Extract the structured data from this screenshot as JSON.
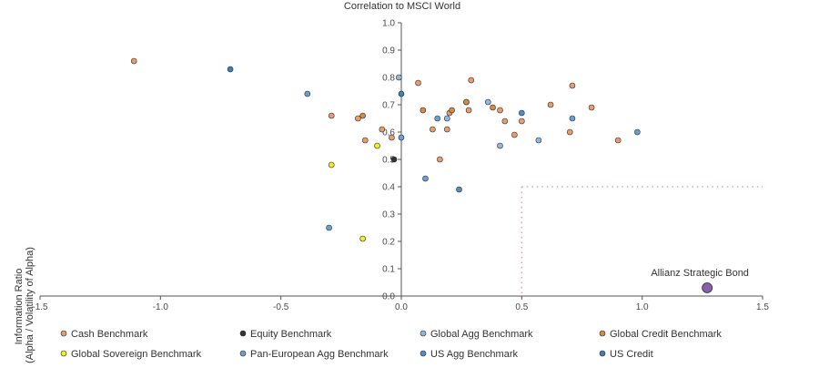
{
  "chart_data": {
    "type": "scatter",
    "title": "Correlation to MSCI World",
    "xlabel": "",
    "ylabel": "Information Ratio\n(Alpha / Volatility of Alpha)",
    "xlim": [
      -1.5,
      1.5
    ],
    "ylim": [
      0.0,
      1.0
    ],
    "xticks": [
      -1.5,
      -1.0,
      -0.5,
      0.0,
      0.5,
      1.0,
      1.5
    ],
    "yticks": [
      0.0,
      0.1,
      0.2,
      0.3,
      0.4,
      0.5,
      0.6,
      0.7,
      0.8,
      0.9,
      1.0
    ],
    "xtick_labels": [
      "-1.5",
      "-1.0",
      "-0.5",
      "0.0",
      "0.5",
      "1.0",
      "1.5"
    ],
    "ytick_labels": [
      "0.0",
      "0.1",
      "0.2",
      "0.3",
      "0.4",
      "0.5",
      "0.6",
      "0.7",
      "0.8",
      "0.9",
      "1.0"
    ],
    "threshold_lines": {
      "x": 0.5,
      "y": 0.4,
      "color": "#e8a0a8"
    },
    "highlight": {
      "name": "Allianz Strategic Bond",
      "x": 1.27,
      "y": 0.03,
      "color": "#8a5fb0"
    },
    "series": [
      {
        "name": "Cash Benchmark",
        "color": "#e89e6a",
        "points": [
          [
            -1.11,
            0.86
          ],
          [
            -0.29,
            0.66
          ],
          [
            -0.18,
            0.65
          ],
          [
            -0.15,
            0.57
          ],
          [
            -0.08,
            0.61
          ],
          [
            -0.04,
            0.58
          ],
          [
            0.07,
            0.78
          ],
          [
            0.19,
            0.61
          ],
          [
            0.2,
            0.67
          ],
          [
            0.29,
            0.79
          ],
          [
            0.27,
            0.71
          ],
          [
            0.28,
            0.68
          ],
          [
            0.41,
            0.68
          ],
          [
            0.43,
            0.64
          ],
          [
            0.5,
            0.64
          ],
          [
            0.47,
            0.59
          ],
          [
            0.62,
            0.7
          ],
          [
            0.7,
            0.6
          ],
          [
            0.71,
            0.77
          ],
          [
            0.79,
            0.69
          ],
          [
            0.9,
            0.57
          ],
          [
            0.16,
            0.5
          ],
          [
            0.13,
            0.61
          ]
        ]
      },
      {
        "name": "Equity Benchmark",
        "color": "#333333",
        "points": [
          [
            -0.03,
            0.5
          ]
        ]
      },
      {
        "name": "Global Agg Benchmark",
        "color": "#8fb8e0",
        "points": [
          [
            -0.01,
            0.8
          ],
          [
            0.19,
            0.65
          ],
          [
            0.41,
            0.55
          ],
          [
            0.57,
            0.57
          ],
          [
            0.36,
            0.71
          ]
        ]
      },
      {
        "name": "Global Credit Benchmark",
        "color": "#d9883f",
        "points": [
          [
            -0.16,
            0.66
          ],
          [
            0.09,
            0.68
          ],
          [
            0.21,
            0.68
          ],
          [
            0.38,
            0.69
          ],
          [
            0.27,
            0.71
          ]
        ]
      },
      {
        "name": "Global Sovereign Benchmark",
        "color": "#f5ee1a",
        "points": [
          [
            -0.29,
            0.48
          ],
          [
            -0.1,
            0.55
          ],
          [
            -0.16,
            0.21
          ]
        ]
      },
      {
        "name": "Pan-European Agg Benchmark",
        "color": "#6a9fd6",
        "points": [
          [
            -0.39,
            0.74
          ],
          [
            -0.3,
            0.25
          ],
          [
            0.0,
            0.58
          ],
          [
            0.1,
            0.43
          ],
          [
            0.71,
            0.65
          ],
          [
            0.98,
            0.6
          ],
          [
            0.15,
            0.65
          ]
        ]
      },
      {
        "name": "US Agg Benchmark",
        "color": "#4a8fcf",
        "points": [
          [
            0.24,
            0.39
          ],
          [
            0.5,
            0.67
          ]
        ]
      },
      {
        "name": "US Credit",
        "color": "#3d7fb8",
        "points": [
          [
            -0.71,
            0.83
          ],
          [
            0.0,
            0.74
          ]
        ]
      }
    ],
    "legend": {
      "position": "bottom",
      "rows": [
        [
          "Cash Benchmark",
          "Equity Benchmark",
          "Global Agg Benchmark",
          "Global Credit Benchmark"
        ],
        [
          "Global Sovereign Benchmark",
          "Pan-European Agg Benchmark",
          "US Agg Benchmark",
          "US Credit"
        ]
      ]
    }
  }
}
